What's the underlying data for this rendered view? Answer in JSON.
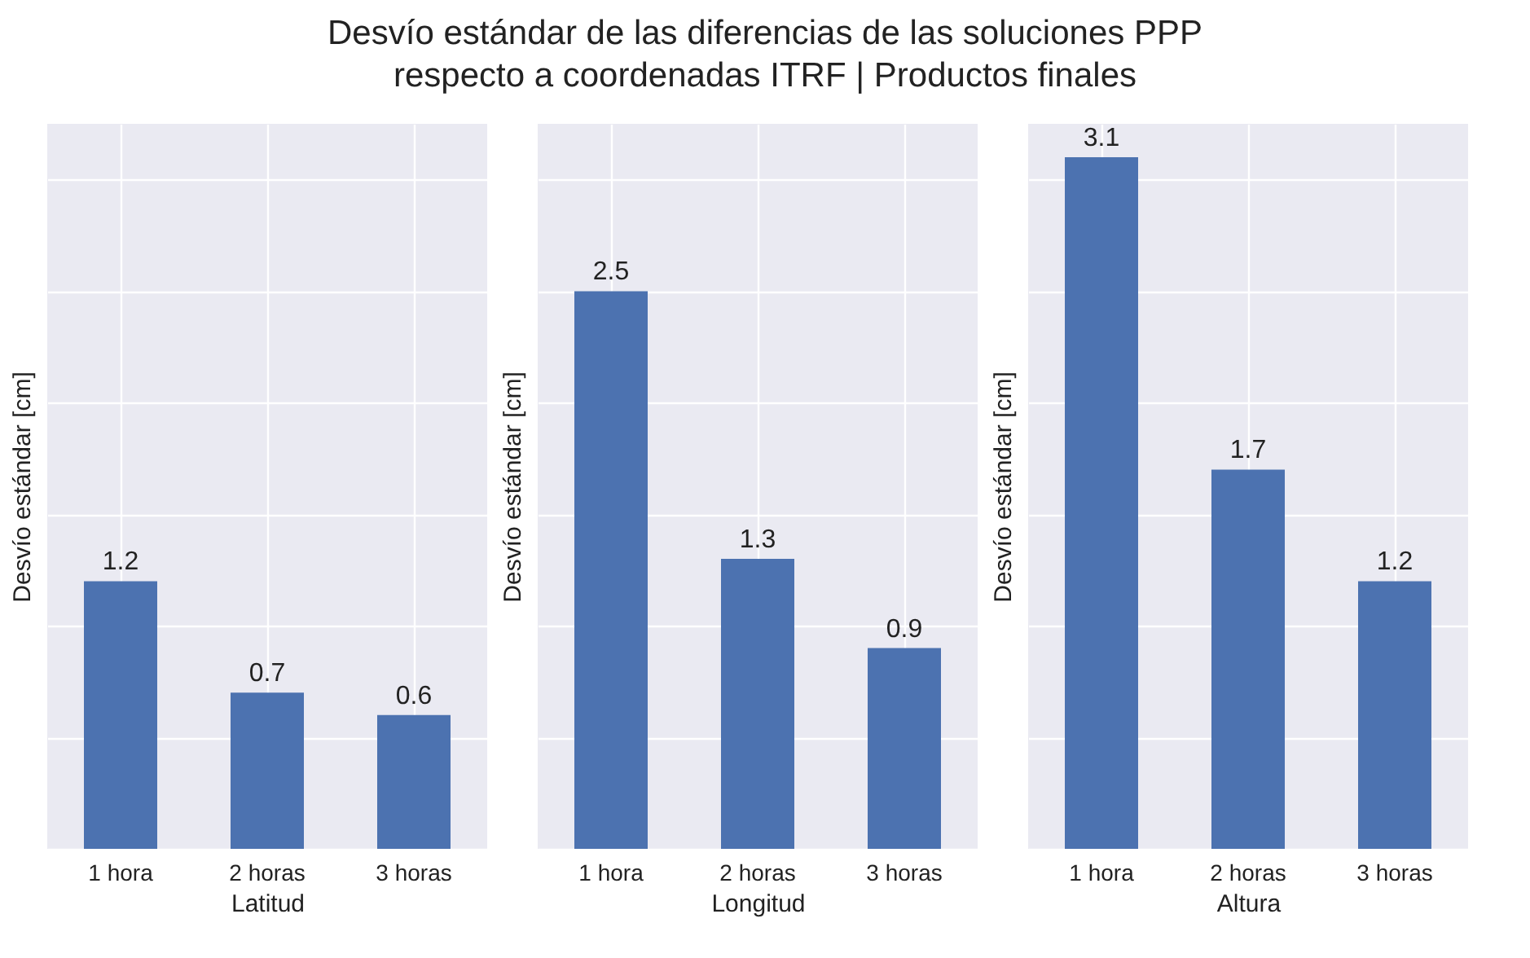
{
  "chart_data": [
    {
      "type": "bar",
      "title": "Desvío estándar de las diferencias de las soluciones PPP\nrespecto a coordenadas ITRF | Productos finales",
      "categories": [
        "1 hora",
        "2 horas",
        "3 horas"
      ],
      "values": [
        1.2,
        0.7,
        0.6
      ],
      "color": "#4c72b0",
      "data_labels": true,
      "xlabel": "Latitud",
      "ylabel": "Desvío estándar [cm]",
      "ylim": [
        0,
        3.25
      ],
      "yticks": [
        {
          "value": 0,
          "label": null
        },
        {
          "value": 0.5,
          "label": null
        },
        {
          "value": 1,
          "label": null
        },
        {
          "value": 1.5,
          "label": null
        },
        {
          "value": 2,
          "label": null
        },
        {
          "value": 2.5,
          "label": null
        },
        {
          "value": 3,
          "label": null
        }
      ],
      "tick_labels": "x",
      "grid": true
    },
    {
      "type": "bar",
      "categories": [
        "1 hora",
        "2 horas",
        "3 horas"
      ],
      "values": [
        2.5,
        1.3,
        0.9
      ],
      "color": "#4c72b0",
      "data_labels": true,
      "xlabel": "Longitud",
      "ylabel": "Desvío estándar [cm]",
      "ylim": [
        0,
        3.25
      ],
      "yticks": [
        {
          "value": 0,
          "label": null
        },
        {
          "value": 0.5,
          "label": null
        },
        {
          "value": 1,
          "label": null
        },
        {
          "value": 1.5,
          "label": null
        },
        {
          "value": 2,
          "label": null
        },
        {
          "value": 2.5,
          "label": null
        },
        {
          "value": 3,
          "label": null
        }
      ],
      "tick_labels": "x",
      "grid": true
    },
    {
      "type": "bar",
      "categories": [
        "1 hora",
        "2 horas",
        "3 horas"
      ],
      "values": [
        3.1,
        1.7,
        1.2
      ],
      "color": "#4c72b0",
      "data_labels": true,
      "xlabel": "Altura",
      "ylabel": "Desvío estándar [cm]",
      "ylim": [
        0,
        3.25
      ],
      "yticks": [
        {
          "value": 0,
          "label": null
        },
        {
          "value": 0.5,
          "label": null
        },
        {
          "value": 1,
          "label": null
        },
        {
          "value": 1.5,
          "label": null
        },
        {
          "value": 2,
          "label": null
        },
        {
          "value": 2.5,
          "label": null
        },
        {
          "value": 3,
          "label": null
        }
      ],
      "tick_labels": "x",
      "grid": true
    }
  ]
}
